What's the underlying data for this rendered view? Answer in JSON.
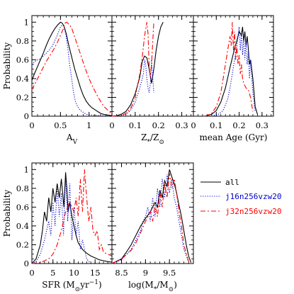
{
  "chart_data": [
    {
      "type": "line",
      "panel": "Av",
      "xlabel_main": "A",
      "xlabel_sub": "V",
      "ylabel": "Probability",
      "xlim": [
        0,
        1.4
      ],
      "ylim": [
        0,
        1.07
      ],
      "xtick_labels": [
        "0",
        "0.5",
        "1"
      ],
      "ytick_labels": [
        "0",
        "0.2",
        "0.4",
        "0.6",
        "0.8",
        "1"
      ],
      "series": [
        {
          "name": "all",
          "x": [
            0,
            0.05,
            0.1,
            0.15,
            0.2,
            0.25,
            0.3,
            0.35,
            0.4,
            0.45,
            0.5,
            0.53,
            0.56,
            0.6,
            0.65,
            0.7,
            0.75,
            0.8,
            0.85,
            0.9,
            0.95,
            1.0,
            1.05,
            1.1,
            1.15,
            1.2,
            1.25,
            1.3,
            1.35,
            1.4
          ],
          "y": [
            0.38,
            0.46,
            0.53,
            0.6,
            0.67,
            0.75,
            0.82,
            0.88,
            0.93,
            0.97,
            1.0,
            0.99,
            0.96,
            0.88,
            0.74,
            0.62,
            0.5,
            0.4,
            0.3,
            0.22,
            0.16,
            0.12,
            0.09,
            0.07,
            0.05,
            0.03,
            0.02,
            0.015,
            0.01,
            0.005
          ]
        },
        {
          "name": "j16n256vzw20",
          "x": [
            0,
            0.05,
            0.1,
            0.15,
            0.2,
            0.25,
            0.3,
            0.35,
            0.4,
            0.45,
            0.5,
            0.53,
            0.56,
            0.6,
            0.63,
            0.66,
            0.7,
            0.73,
            0.76,
            0.8,
            0.85,
            0.9,
            0.95,
            1.0,
            1.1,
            1.2,
            1.4
          ],
          "y": [
            0.55,
            0.58,
            0.6,
            0.61,
            0.64,
            0.67,
            0.7,
            0.74,
            0.8,
            0.87,
            0.95,
            0.97,
            0.96,
            0.85,
            0.72,
            0.55,
            0.38,
            0.25,
            0.16,
            0.1,
            0.06,
            0.04,
            0.02,
            0.015,
            0.01,
            0.005,
            0
          ]
        },
        {
          "name": "j32n256vzw20",
          "x": [
            0,
            0.05,
            0.1,
            0.15,
            0.2,
            0.25,
            0.3,
            0.35,
            0.4,
            0.45,
            0.5,
            0.55,
            0.58,
            0.61,
            0.64,
            0.67,
            0.7,
            0.75,
            0.8,
            0.85,
            0.9,
            0.95,
            1.0,
            1.05,
            1.1,
            1.15,
            1.2,
            1.25,
            1.3,
            1.35,
            1.4
          ],
          "y": [
            0.28,
            0.34,
            0.4,
            0.46,
            0.52,
            0.58,
            0.63,
            0.68,
            0.73,
            0.79,
            0.86,
            0.93,
            0.99,
            1.0,
            0.98,
            0.96,
            0.93,
            0.84,
            0.75,
            0.66,
            0.57,
            0.48,
            0.4,
            0.33,
            0.27,
            0.21,
            0.16,
            0.11,
            0.08,
            0.05,
            0.03
          ]
        }
      ]
    },
    {
      "type": "line",
      "panel": "Z",
      "xlabel_main": "Z",
      "xlabel_sub": "*",
      "xlabel_tail": "/Z",
      "xlabel_sun": "⊙",
      "xlim": [
        0,
        0.35
      ],
      "ylim": [
        0,
        1.07
      ],
      "xtick_labels": [
        "0",
        "0.1",
        "0.2",
        "0.3"
      ],
      "series": [
        {
          "name": "all",
          "x": [
            0,
            0.02,
            0.04,
            0.06,
            0.08,
            0.1,
            0.12,
            0.13,
            0.14,
            0.15,
            0.16,
            0.17,
            0.18,
            0.19,
            0.2,
            0.21,
            0.22
          ],
          "y": [
            0,
            0.005,
            0.02,
            0.05,
            0.12,
            0.24,
            0.42,
            0.58,
            0.64,
            0.62,
            0.5,
            0.35,
            0.5,
            0.7,
            0.85,
            0.95,
            1.0
          ]
        },
        {
          "name": "j16n256vzw20",
          "x": [
            0,
            0.04,
            0.06,
            0.08,
            0.1,
            0.12,
            0.135,
            0.14,
            0.145,
            0.15,
            0.155,
            0.16,
            0.165,
            0.17,
            0.18
          ],
          "y": [
            0,
            0.005,
            0.02,
            0.06,
            0.15,
            0.3,
            0.45,
            0.6,
            0.55,
            0.4,
            0.3,
            0.25,
            0.35,
            0.6,
            0.25
          ]
        },
        {
          "name": "j32n256vzw20",
          "x": [
            0,
            0.04,
            0.06,
            0.08,
            0.1,
            0.12,
            0.13,
            0.14,
            0.15,
            0.155,
            0.16,
            0.165,
            0.17,
            0.18
          ],
          "y": [
            0,
            0.005,
            0.03,
            0.08,
            0.2,
            0.45,
            0.62,
            0.85,
            1.0,
            0.88,
            0.52,
            0.42,
            0.55,
            1.0
          ]
        }
      ]
    },
    {
      "type": "line",
      "panel": "mean Age",
      "xlabel_main": "mean Age (Gyr)",
      "xlim": [
        0,
        0.35
      ],
      "ylim": [
        0,
        1.07
      ],
      "xtick_labels": [
        "0",
        "0.1",
        "0.2",
        "0.3"
      ],
      "series": [
        {
          "name": "all",
          "x": [
            0.05,
            0.08,
            0.1,
            0.12,
            0.14,
            0.16,
            0.17,
            0.18,
            0.19,
            0.2,
            0.21,
            0.215,
            0.22,
            0.225,
            0.23,
            0.235,
            0.24,
            0.245,
            0.25,
            0.255,
            0.26,
            0.265,
            0.27,
            0.28
          ],
          "y": [
            0,
            0.02,
            0.06,
            0.15,
            0.3,
            0.52,
            0.62,
            0.72,
            0.8,
            0.9,
            0.86,
            0.95,
            0.8,
            0.9,
            0.75,
            0.85,
            0.72,
            0.55,
            0.6,
            0.5,
            0.4,
            0.25,
            0.1,
            0.02
          ]
        },
        {
          "name": "j16n256vzw20",
          "x": [
            0.08,
            0.11,
            0.13,
            0.15,
            0.16,
            0.17,
            0.18,
            0.19,
            0.2,
            0.205,
            0.21,
            0.215,
            0.22,
            0.225,
            0.23,
            0.235,
            0.24,
            0.245,
            0.25,
            0.26,
            0.27
          ],
          "y": [
            0,
            0.02,
            0.06,
            0.18,
            0.3,
            0.45,
            0.6,
            0.75,
            0.95,
            0.7,
            0.9,
            0.65,
            0.85,
            0.6,
            0.8,
            0.55,
            0.7,
            0.4,
            0.6,
            0.25,
            0.05
          ]
        },
        {
          "name": "j32n256vzw20",
          "x": [
            0.05,
            0.08,
            0.1,
            0.12,
            0.13,
            0.14,
            0.15,
            0.16,
            0.165,
            0.17,
            0.175,
            0.18,
            0.185,
            0.19,
            0.195,
            0.2,
            0.205,
            0.21,
            0.215,
            0.22,
            0.23,
            0.24,
            0.25,
            0.26
          ],
          "y": [
            0,
            0.03,
            0.1,
            0.25,
            0.4,
            0.55,
            0.7,
            0.85,
            0.75,
            1.0,
            0.7,
            0.9,
            0.6,
            0.75,
            0.55,
            0.65,
            0.45,
            0.55,
            0.4,
            0.35,
            0.3,
            0.28,
            0.2,
            0.05
          ]
        }
      ]
    },
    {
      "type": "line",
      "panel": "SFR",
      "xlabel_main": "SFR (M",
      "xlabel_sun": "⊙",
      "xlabel_tail": "yr",
      "xlabel_sup": "−1",
      "xlabel_close": ")",
      "ylabel": "Probability",
      "xlim": [
        0,
        19
      ],
      "ylim": [
        0,
        1.07
      ],
      "xtick_labels": [
        "0",
        "5",
        "10",
        "15"
      ],
      "ytick_labels": [
        "0",
        "0.2",
        "0.4",
        "0.6",
        "0.8",
        "1"
      ],
      "series": [
        {
          "name": "all",
          "x": [
            0,
            1,
            2,
            2.5,
            3,
            3.5,
            4,
            4.5,
            5,
            5.5,
            6,
            6.5,
            7,
            7.3,
            7.6,
            8,
            8.3,
            8.6,
            9,
            9.5,
            10,
            10.5,
            11,
            12,
            13,
            14,
            15,
            16,
            17,
            18,
            19
          ],
          "y": [
            0,
            0.05,
            0.2,
            0.35,
            0.55,
            0.45,
            0.7,
            0.55,
            0.8,
            0.65,
            0.85,
            0.7,
            0.9,
            0.75,
            0.6,
            0.97,
            0.8,
            0.55,
            0.65,
            0.5,
            0.4,
            0.3,
            0.22,
            0.15,
            0.11,
            0.08,
            0.06,
            0.04,
            0.03,
            0.02,
            0.015
          ]
        },
        {
          "name": "j16n256vzw20",
          "x": [
            0,
            1,
            2,
            3,
            4,
            4.5,
            5,
            5.5,
            6,
            6.5,
            7,
            7.5,
            8,
            8.5,
            9,
            9.5,
            10,
            10.5,
            11,
            11.5,
            12,
            13,
            14
          ],
          "y": [
            0,
            0.02,
            0.1,
            0.25,
            0.45,
            0.3,
            0.65,
            0.4,
            0.8,
            0.5,
            0.75,
            0.3,
            0.92,
            0.45,
            0.85,
            0.25,
            0.6,
            0.3,
            0.45,
            0.15,
            0.25,
            0.05,
            0
          ]
        },
        {
          "name": "j32n256vzw20",
          "x": [
            0,
            2,
            4,
            5,
            6,
            7,
            8,
            9,
            10,
            10.5,
            11,
            11.5,
            12,
            12.5,
            13,
            13.5,
            14,
            14.5,
            15,
            15.5,
            16,
            16.5,
            17,
            18,
            19
          ],
          "y": [
            0,
            0.01,
            0.05,
            0.1,
            0.2,
            0.35,
            0.55,
            0.65,
            0.55,
            0.7,
            0.5,
            0.9,
            0.55,
            1.0,
            0.7,
            0.45,
            0.6,
            0.35,
            0.3,
            0.35,
            0.15,
            0.2,
            0.12,
            0.1,
            0.08
          ]
        }
      ]
    },
    {
      "type": "line",
      "panel": "log M*",
      "xlabel_main": "log(M",
      "xlabel_sub": "*",
      "xlabel_tail": "/M",
      "xlabel_sun": "⊙",
      "xlabel_close": ")",
      "xlim": [
        8.3,
        10.0
      ],
      "ylim": [
        0,
        1.07
      ],
      "xtick_values": [
        8.5,
        9,
        9.5
      ],
      "xtick_labels": [
        "8.5",
        "9",
        "9.5"
      ],
      "series": [
        {
          "name": "all",
          "x": [
            8.3,
            8.5,
            8.6,
            8.7,
            8.8,
            8.9,
            9.0,
            9.1,
            9.2,
            9.25,
            9.3,
            9.35,
            9.4,
            9.45,
            9.5,
            9.55,
            9.6,
            9.65,
            9.7,
            9.75,
            9.8,
            9.85,
            9.9,
            9.95
          ],
          "y": [
            0,
            0.05,
            0.12,
            0.2,
            0.3,
            0.4,
            0.48,
            0.55,
            0.65,
            0.6,
            0.78,
            0.7,
            0.88,
            0.82,
            1.0,
            0.92,
            0.85,
            0.75,
            0.62,
            0.5,
            0.35,
            0.2,
            0.08,
            0.01
          ]
        },
        {
          "name": "j16n256vzw20",
          "x": [
            8.3,
            8.5,
            8.7,
            8.8,
            8.9,
            8.95,
            9.0,
            9.05,
            9.1,
            9.15,
            9.2,
            9.25,
            9.3,
            9.35,
            9.4,
            9.45,
            9.5,
            9.55,
            9.6,
            9.65,
            9.7,
            9.75,
            9.8,
            9.9
          ],
          "y": [
            0,
            0.04,
            0.15,
            0.25,
            0.35,
            0.45,
            0.5,
            0.6,
            0.45,
            0.7,
            0.5,
            0.8,
            0.6,
            0.9,
            0.7,
            0.95,
            0.75,
            0.9,
            0.7,
            0.6,
            0.45,
            0.3,
            0.15,
            0.02
          ]
        },
        {
          "name": "j32n256vzw20",
          "x": [
            8.3,
            8.5,
            8.7,
            8.8,
            8.9,
            9.0,
            9.1,
            9.15,
            9.2,
            9.25,
            9.3,
            9.35,
            9.4,
            9.45,
            9.5,
            9.55,
            9.6,
            9.65,
            9.7,
            9.75,
            9.8,
            9.9
          ],
          "y": [
            0,
            0.05,
            0.14,
            0.22,
            0.33,
            0.45,
            0.55,
            0.45,
            0.62,
            0.5,
            0.75,
            0.6,
            0.85,
            0.7,
            0.96,
            0.8,
            0.9,
            0.75,
            0.55,
            0.4,
            0.2,
            0.02
          ]
        }
      ]
    }
  ],
  "legend": {
    "items": [
      {
        "label": "all",
        "color": "#000000",
        "dash": "solid"
      },
      {
        "label": "j16n256vzw20",
        "color": "#0000cc",
        "dash": "dotted"
      },
      {
        "label": "j32n256vzw20",
        "color": "#ff0000",
        "dash": "dashed"
      }
    ]
  },
  "colors": {
    "all": "#000000",
    "j16n256vzw20": "#0000cc",
    "j32n256vzw20": "#ff0000"
  }
}
